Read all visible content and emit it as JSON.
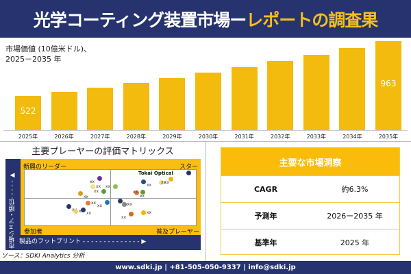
{
  "header": {
    "title_main": "光学コーティング装置市場ー",
    "title_highlight": "レポートの調査果"
  },
  "chart_data": {
    "type": "bar",
    "title": "市場価値 (10億米ドル)、",
    "subtitle": "2025－2035 年",
    "categories": [
      "2025年",
      "2026年",
      "2027年",
      "2028年",
      "2029年",
      "2030年",
      "2031年",
      "2032年",
      "2033年",
      "2034年",
      "2035年"
    ],
    "values": [
      522,
      555,
      590,
      627,
      667,
      709,
      753,
      801,
      851,
      905,
      963
    ],
    "data_labels": {
      "0": "522",
      "10": "963"
    },
    "bar_color": "#f3bb0d"
  },
  "matrix": {
    "title": "主要プレーヤーの評価マトリックス",
    "q_top_left": "新興のリーダー",
    "q_top_right": "スター",
    "q_bottom_left": "参加者",
    "q_bottom_right": "普及プレーヤー",
    "y_axis": "市場シェア・順位",
    "x_axis": "製品のフットプリント",
    "highlight_label": "Tokai Optical",
    "point_label": "xx",
    "point_colors": [
      "#6b2fa0",
      "#f5e08a",
      "#d4a017",
      "#5a9e3a",
      "#27336e",
      "#e07b39",
      "#1f77b4",
      "#f5d060",
      "#27336e",
      "#8bc34a",
      "#2b4a8a",
      "#f5e08a",
      "#f5b400",
      "#27336e",
      "#e07b39",
      "#5a9e3a",
      "#2b3a5a",
      "#888888",
      "#d2691e",
      "#f5b400"
    ]
  },
  "insights": {
    "title": "主要な市場洞察",
    "rows": [
      {
        "k": "CAGR",
        "v": "約6.3%"
      },
      {
        "k": "予測年",
        "v": "2026ー2035 年"
      },
      {
        "k": "基準年",
        "v": "2025 年"
      }
    ]
  },
  "source": "ソース：SDKI Analytics 分析",
  "footer": "www.sdki.jp | +81-505-050-9337 | info@sdki.jp"
}
